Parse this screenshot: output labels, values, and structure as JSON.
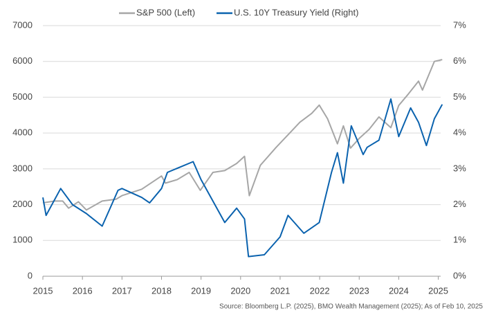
{
  "chart_data": {
    "type": "line",
    "source": "Source: Bloomberg L.P. (2025), BMO Wealth Management (2025); As of Feb 10, 2025",
    "xlim": [
      2015,
      2025.2
    ],
    "xticks": [
      2015,
      2016,
      2017,
      2018,
      2019,
      2020,
      2021,
      2022,
      2023,
      2024,
      2025
    ],
    "ylim": [
      0,
      7000
    ],
    "yticks": [
      0,
      1000,
      2000,
      3000,
      4000,
      5000,
      6000,
      7000
    ],
    "y2lim": [
      0,
      7
    ],
    "y2ticks": [
      {
        "value": 0,
        "label": "0%"
      },
      {
        "value": 1,
        "label": "1%"
      },
      {
        "value": 2,
        "label": "2%"
      },
      {
        "value": 3,
        "label": "3%"
      },
      {
        "value": 4,
        "label": "4%"
      },
      {
        "value": 5,
        "label": "5%"
      },
      {
        "value": 6,
        "label": "6%"
      },
      {
        "value": 7,
        "label": "7%"
      }
    ],
    "grid": true,
    "series": [
      {
        "name": "S&P 500 (Left)",
        "color": "#a6a6a6",
        "x": [
          2015.0,
          2015.3,
          2015.5,
          2015.65,
          2015.9,
          2016.1,
          2016.5,
          2016.85,
          2017.0,
          2017.5,
          2018.0,
          2018.1,
          2018.4,
          2018.7,
          2018.98,
          2019.3,
          2019.6,
          2019.9,
          2020.1,
          2020.22,
          2020.5,
          2020.9,
          2021.2,
          2021.5,
          2021.8,
          2021.99,
          2022.2,
          2022.45,
          2022.6,
          2022.78,
          2023.0,
          2023.25,
          2023.5,
          2023.8,
          2024.0,
          2024.25,
          2024.5,
          2024.6,
          2024.9,
          2025.1
        ],
        "values": [
          2050,
          2100,
          2100,
          1900,
          2080,
          1850,
          2100,
          2150,
          2250,
          2430,
          2800,
          2600,
          2700,
          2900,
          2400,
          2900,
          2950,
          3150,
          3350,
          2250,
          3100,
          3600,
          3950,
          4300,
          4550,
          4780,
          4400,
          3700,
          4200,
          3580,
          3850,
          4100,
          4450,
          4150,
          4770,
          5100,
          5450,
          5200,
          6000,
          6050
        ]
      },
      {
        "name": "U.S. 10Y Treasury Yield (Right)",
        "color": "#0a62ae",
        "axis": "y2",
        "x": [
          2015.0,
          2015.08,
          2015.45,
          2015.75,
          2016.1,
          2016.5,
          2016.9,
          2017.0,
          2017.5,
          2017.7,
          2018.0,
          2018.15,
          2018.8,
          2019.0,
          2019.6,
          2019.9,
          2020.1,
          2020.2,
          2020.6,
          2021.0,
          2021.2,
          2021.6,
          2021.99,
          2022.3,
          2022.45,
          2022.6,
          2022.8,
          2023.1,
          2023.2,
          2023.5,
          2023.8,
          2024.0,
          2024.3,
          2024.5,
          2024.7,
          2024.9,
          2025.1
        ],
        "values": [
          2.2,
          1.7,
          2.45,
          2.0,
          1.75,
          1.4,
          2.4,
          2.45,
          2.2,
          2.05,
          2.45,
          2.9,
          3.2,
          2.7,
          1.5,
          1.9,
          1.6,
          0.55,
          0.6,
          1.1,
          1.7,
          1.2,
          1.5,
          2.9,
          3.45,
          2.6,
          4.2,
          3.4,
          3.6,
          3.8,
          4.95,
          3.9,
          4.7,
          4.3,
          3.65,
          4.4,
          4.8
        ]
      }
    ]
  }
}
